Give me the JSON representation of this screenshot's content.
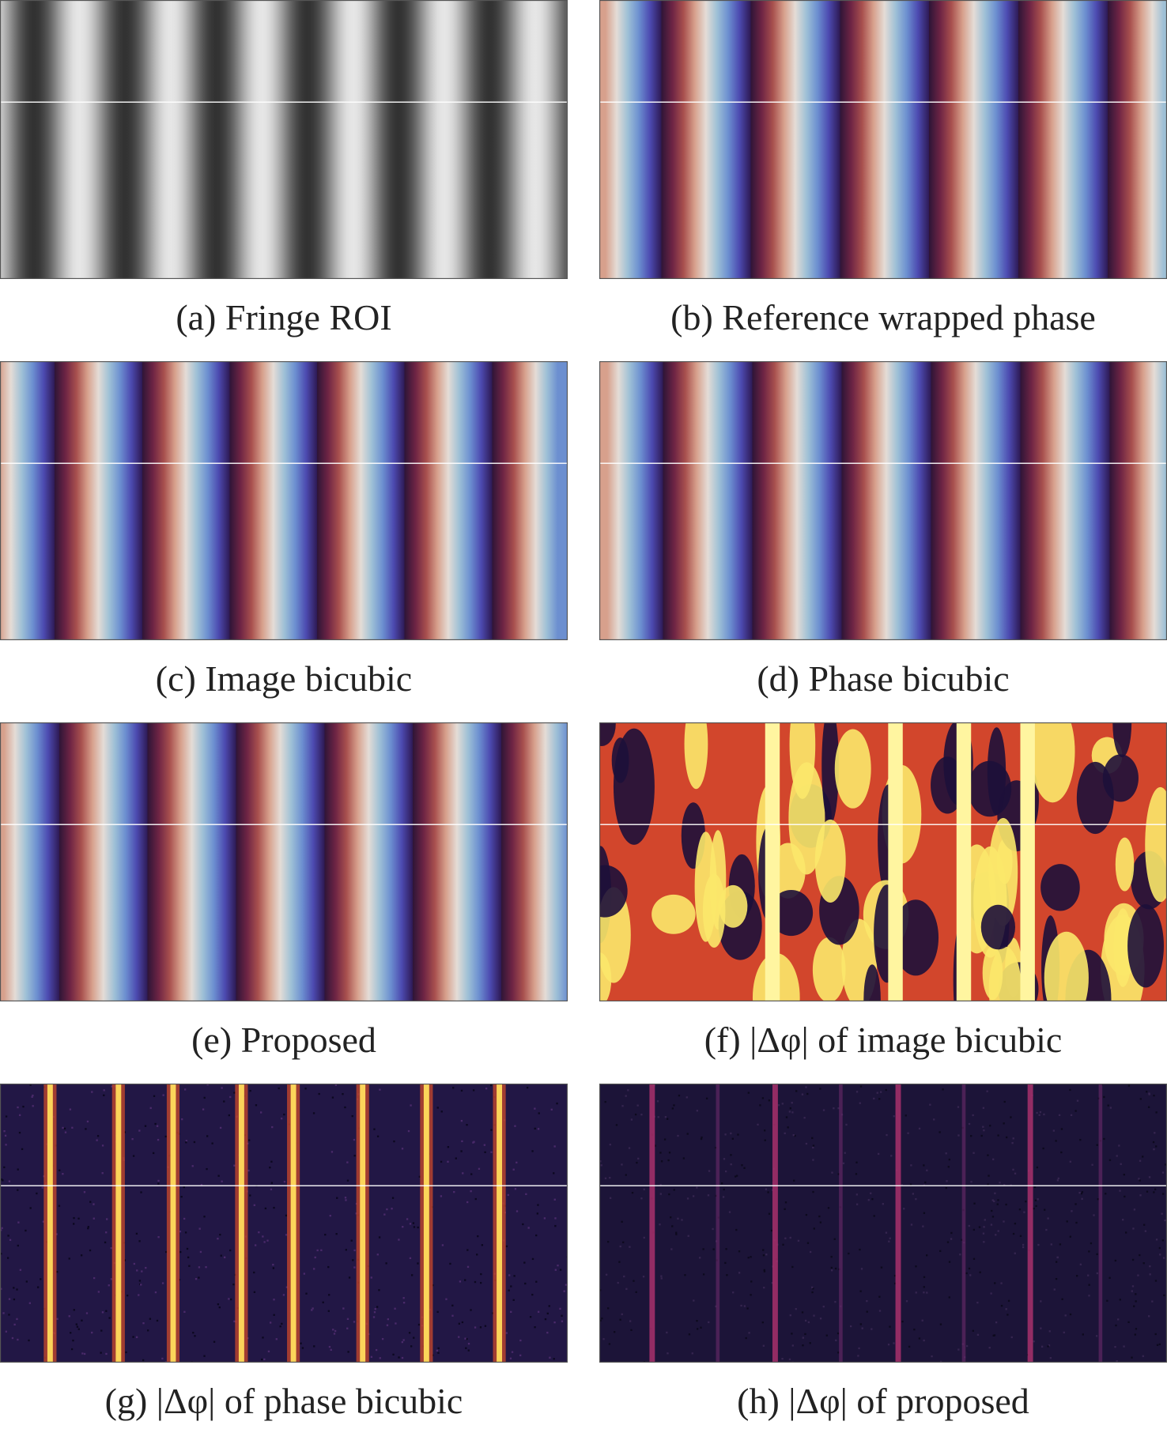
{
  "panels": [
    {
      "caption": "(a) Fringe ROI"
    },
    {
      "caption": "(b) Reference wrapped phase"
    },
    {
      "caption": "(c) Image bicubic"
    },
    {
      "caption": "(d) Phase bicubic"
    },
    {
      "caption": "(e) Proposed"
    },
    {
      "caption": "(f) |Δφ| of image bicubic"
    },
    {
      "caption": "(g) |Δφ| of phase bicubic"
    },
    {
      "caption": "(h) |Δφ| of proposed"
    }
  ]
}
